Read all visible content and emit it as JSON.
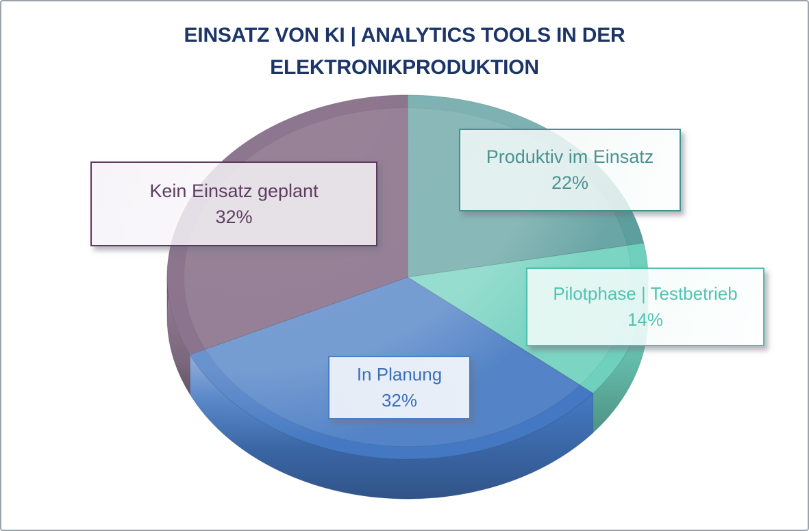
{
  "frame": {
    "border_color": "#9aa2ac",
    "background": "#ffffff"
  },
  "title": {
    "line1": "EINSATZ VON KI | ANALYTICS TOOLS IN DER",
    "line2": "ELEKTRONIKPRODUKTION",
    "color": "#1c3569"
  },
  "chart_data": {
    "type": "pie",
    "style": "3d",
    "title": "EINSATZ VON KI | ANALYTICS TOOLS IN DER ELEKTRONIKPRODUKTION",
    "labels": [
      "Produktiv im Einsatz",
      "Pilotphase | Testbetrieb",
      "In Planung",
      "Kein Einsatz geplant"
    ],
    "values": [
      22,
      14,
      32,
      32
    ],
    "value_labels": [
      "22%",
      "14%",
      "32%",
      "32%"
    ],
    "unit": "%",
    "start_angle_deg": 0,
    "direction": "clockwise",
    "colors": [
      "#5d9e9e",
      "#6fd0bd",
      "#4478c2",
      "#6e5170"
    ],
    "legend_position": "callout-labels"
  },
  "callouts": [
    {
      "label": "Produktiv im Einsatz",
      "value": "22%",
      "accent": "#41918e",
      "text_color": "#4a9391"
    },
    {
      "label": "Pilotphase | Testbetrieb",
      "value": "14%",
      "accent": "#4cc0ad",
      "text_color": "#52c3b1"
    },
    {
      "label": "In Planung",
      "value": "32%",
      "accent": "#4a7dc4",
      "text_color": "#3a70bb"
    },
    {
      "label": "Kein Einsatz geplant",
      "value": "32%",
      "accent": "#5d3a5e",
      "text_color": "#5e3d60"
    }
  ]
}
